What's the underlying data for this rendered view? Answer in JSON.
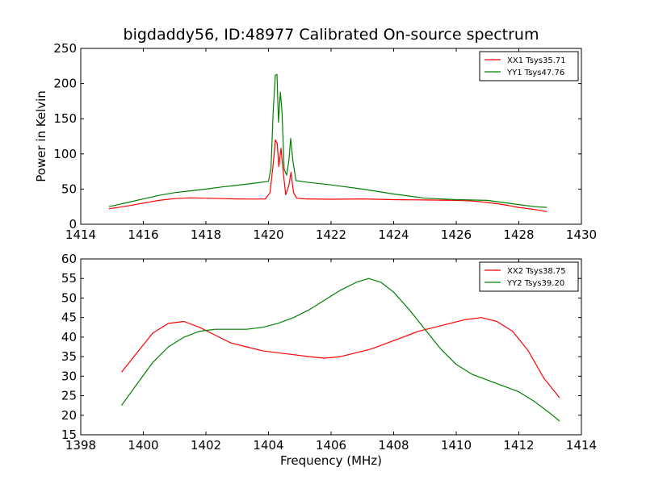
{
  "chart_data": [
    {
      "type": "line",
      "title": "bigdaddy56, ID:48977 Calibrated On-source spectrum",
      "xlabel": "",
      "ylabel": "Power in Kelvin",
      "xlim": [
        1414,
        1430
      ],
      "ylim": [
        0,
        250
      ],
      "xticks": [
        "1414",
        "1416",
        "1418",
        "1420",
        "1422",
        "1424",
        "1426",
        "1428",
        "1430"
      ],
      "yticks": [
        "0",
        "50",
        "100",
        "150",
        "200",
        "250"
      ],
      "legend_position": "top-right",
      "grid": false,
      "series": [
        {
          "name": "XX1 Tsys35.71",
          "color": "#ff0000",
          "points": [
            [
              1414.9,
              22
            ],
            [
              1415.5,
              26
            ],
            [
              1416,
              30
            ],
            [
              1416.5,
              34
            ],
            [
              1417,
              36.5
            ],
            [
              1417.5,
              37.5
            ],
            [
              1418,
              37
            ],
            [
              1418.5,
              36.5
            ],
            [
              1419,
              36
            ],
            [
              1419.5,
              35.8
            ],
            [
              1419.9,
              36
            ],
            [
              1420.05,
              45
            ],
            [
              1420.15,
              85
            ],
            [
              1420.22,
              120
            ],
            [
              1420.28,
              115
            ],
            [
              1420.33,
              82
            ],
            [
              1420.4,
              108
            ],
            [
              1420.47,
              75
            ],
            [
              1420.55,
              42
            ],
            [
              1420.65,
              55
            ],
            [
              1420.72,
              74
            ],
            [
              1420.8,
              45
            ],
            [
              1420.9,
              37
            ],
            [
              1421.2,
              36
            ],
            [
              1422,
              35.5
            ],
            [
              1423,
              36
            ],
            [
              1424,
              35
            ],
            [
              1425,
              34.5
            ],
            [
              1426,
              34
            ],
            [
              1426.5,
              33
            ],
            [
              1427,
              31
            ],
            [
              1427.5,
              28
            ],
            [
              1428,
              24
            ],
            [
              1428.5,
              21
            ],
            [
              1428.9,
              18
            ]
          ]
        },
        {
          "name": "YY1 Tsys47.76",
          "color": "#008000",
          "points": [
            [
              1414.9,
              25
            ],
            [
              1415.5,
              31
            ],
            [
              1416,
              36
            ],
            [
              1416.5,
              41
            ],
            [
              1417,
              45
            ],
            [
              1417.5,
              47.5
            ],
            [
              1418,
              50
            ],
            [
              1418.5,
              53
            ],
            [
              1419,
              55.5
            ],
            [
              1419.5,
              58
            ],
            [
              1420,
              61
            ],
            [
              1420.08,
              80
            ],
            [
              1420.15,
              160
            ],
            [
              1420.22,
              212
            ],
            [
              1420.27,
              213
            ],
            [
              1420.32,
              145
            ],
            [
              1420.38,
              188
            ],
            [
              1420.43,
              160
            ],
            [
              1420.5,
              78
            ],
            [
              1420.58,
              70
            ],
            [
              1420.65,
              90
            ],
            [
              1420.71,
              122
            ],
            [
              1420.78,
              90
            ],
            [
              1420.88,
              62
            ],
            [
              1421.2,
              60
            ],
            [
              1422,
              56
            ],
            [
              1423,
              50
            ],
            [
              1424,
              43
            ],
            [
              1425,
              37
            ],
            [
              1426,
              35
            ],
            [
              1427,
              34
            ],
            [
              1427.5,
              31
            ],
            [
              1428,
              28
            ],
            [
              1428.5,
              25
            ],
            [
              1428.9,
              24
            ]
          ]
        }
      ]
    },
    {
      "type": "line",
      "title": "",
      "xlabel": "Frequency (MHz)",
      "ylabel": "",
      "xlim": [
        1398,
        1414
      ],
      "ylim": [
        15,
        60
      ],
      "xticks": [
        "1398",
        "1400",
        "1402",
        "1404",
        "1406",
        "1408",
        "1410",
        "1412",
        "1414"
      ],
      "yticks": [
        "15",
        "20",
        "25",
        "30",
        "35",
        "40",
        "45",
        "50",
        "55",
        "60"
      ],
      "legend_position": "top-right",
      "grid": false,
      "series": [
        {
          "name": "XX2 Tsys38.75",
          "color": "#ff0000",
          "points": [
            [
              1399.3,
              31
            ],
            [
              1399.8,
              36
            ],
            [
              1400.3,
              41
            ],
            [
              1400.8,
              43.5
            ],
            [
              1401.3,
              44
            ],
            [
              1401.8,
              42.5
            ],
            [
              1402.3,
              40.5
            ],
            [
              1402.8,
              38.5
            ],
            [
              1403.3,
              37.5
            ],
            [
              1403.8,
              36.5
            ],
            [
              1404.3,
              36
            ],
            [
              1404.8,
              35.5
            ],
            [
              1405.3,
              35
            ],
            [
              1405.8,
              34.6
            ],
            [
              1406.3,
              35
            ],
            [
              1406.8,
              36
            ],
            [
              1407.3,
              37
            ],
            [
              1407.8,
              38.5
            ],
            [
              1408.3,
              40
            ],
            [
              1408.8,
              41.5
            ],
            [
              1409.3,
              42.5
            ],
            [
              1409.8,
              43.5
            ],
            [
              1410.3,
              44.5
            ],
            [
              1410.8,
              45
            ],
            [
              1411.3,
              44
            ],
            [
              1411.8,
              41.5
            ],
            [
              1412.3,
              36.5
            ],
            [
              1412.8,
              29.5
            ],
            [
              1413.3,
              24.5
            ]
          ]
        },
        {
          "name": "YY2 Tsys39.20",
          "color": "#008000",
          "points": [
            [
              1399.3,
              22.5
            ],
            [
              1399.8,
              28
            ],
            [
              1400.3,
              33.5
            ],
            [
              1400.8,
              37.5
            ],
            [
              1401.3,
              40
            ],
            [
              1401.8,
              41.5
            ],
            [
              1402.3,
              42
            ],
            [
              1402.8,
              42
            ],
            [
              1403.3,
              42
            ],
            [
              1403.8,
              42.5
            ],
            [
              1404.3,
              43.5
            ],
            [
              1404.8,
              45
            ],
            [
              1405.3,
              47
            ],
            [
              1405.8,
              49.5
            ],
            [
              1406.3,
              52
            ],
            [
              1406.8,
              54
            ],
            [
              1407.2,
              55
            ],
            [
              1407.6,
              54
            ],
            [
              1408,
              51.5
            ],
            [
              1408.5,
              47
            ],
            [
              1409,
              42
            ],
            [
              1409.5,
              37
            ],
            [
              1410,
              33
            ],
            [
              1410.5,
              30.5
            ],
            [
              1411,
              29
            ],
            [
              1411.5,
              27.5
            ],
            [
              1412,
              26
            ],
            [
              1412.5,
              23.5
            ],
            [
              1413,
              20.5
            ],
            [
              1413.3,
              18.5
            ]
          ]
        }
      ]
    }
  ]
}
